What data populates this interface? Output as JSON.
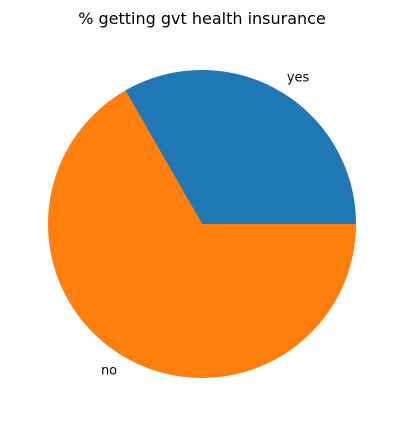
{
  "chart_data": {
    "type": "pie",
    "title": "% getting gvt health insurance",
    "categories": [
      "yes",
      "no"
    ],
    "values": [
      33.3,
      66.7
    ],
    "colors": [
      "#1f77b4",
      "#ff7f0e"
    ],
    "start_angle_deg": 0,
    "direction": "counterclockwise"
  }
}
